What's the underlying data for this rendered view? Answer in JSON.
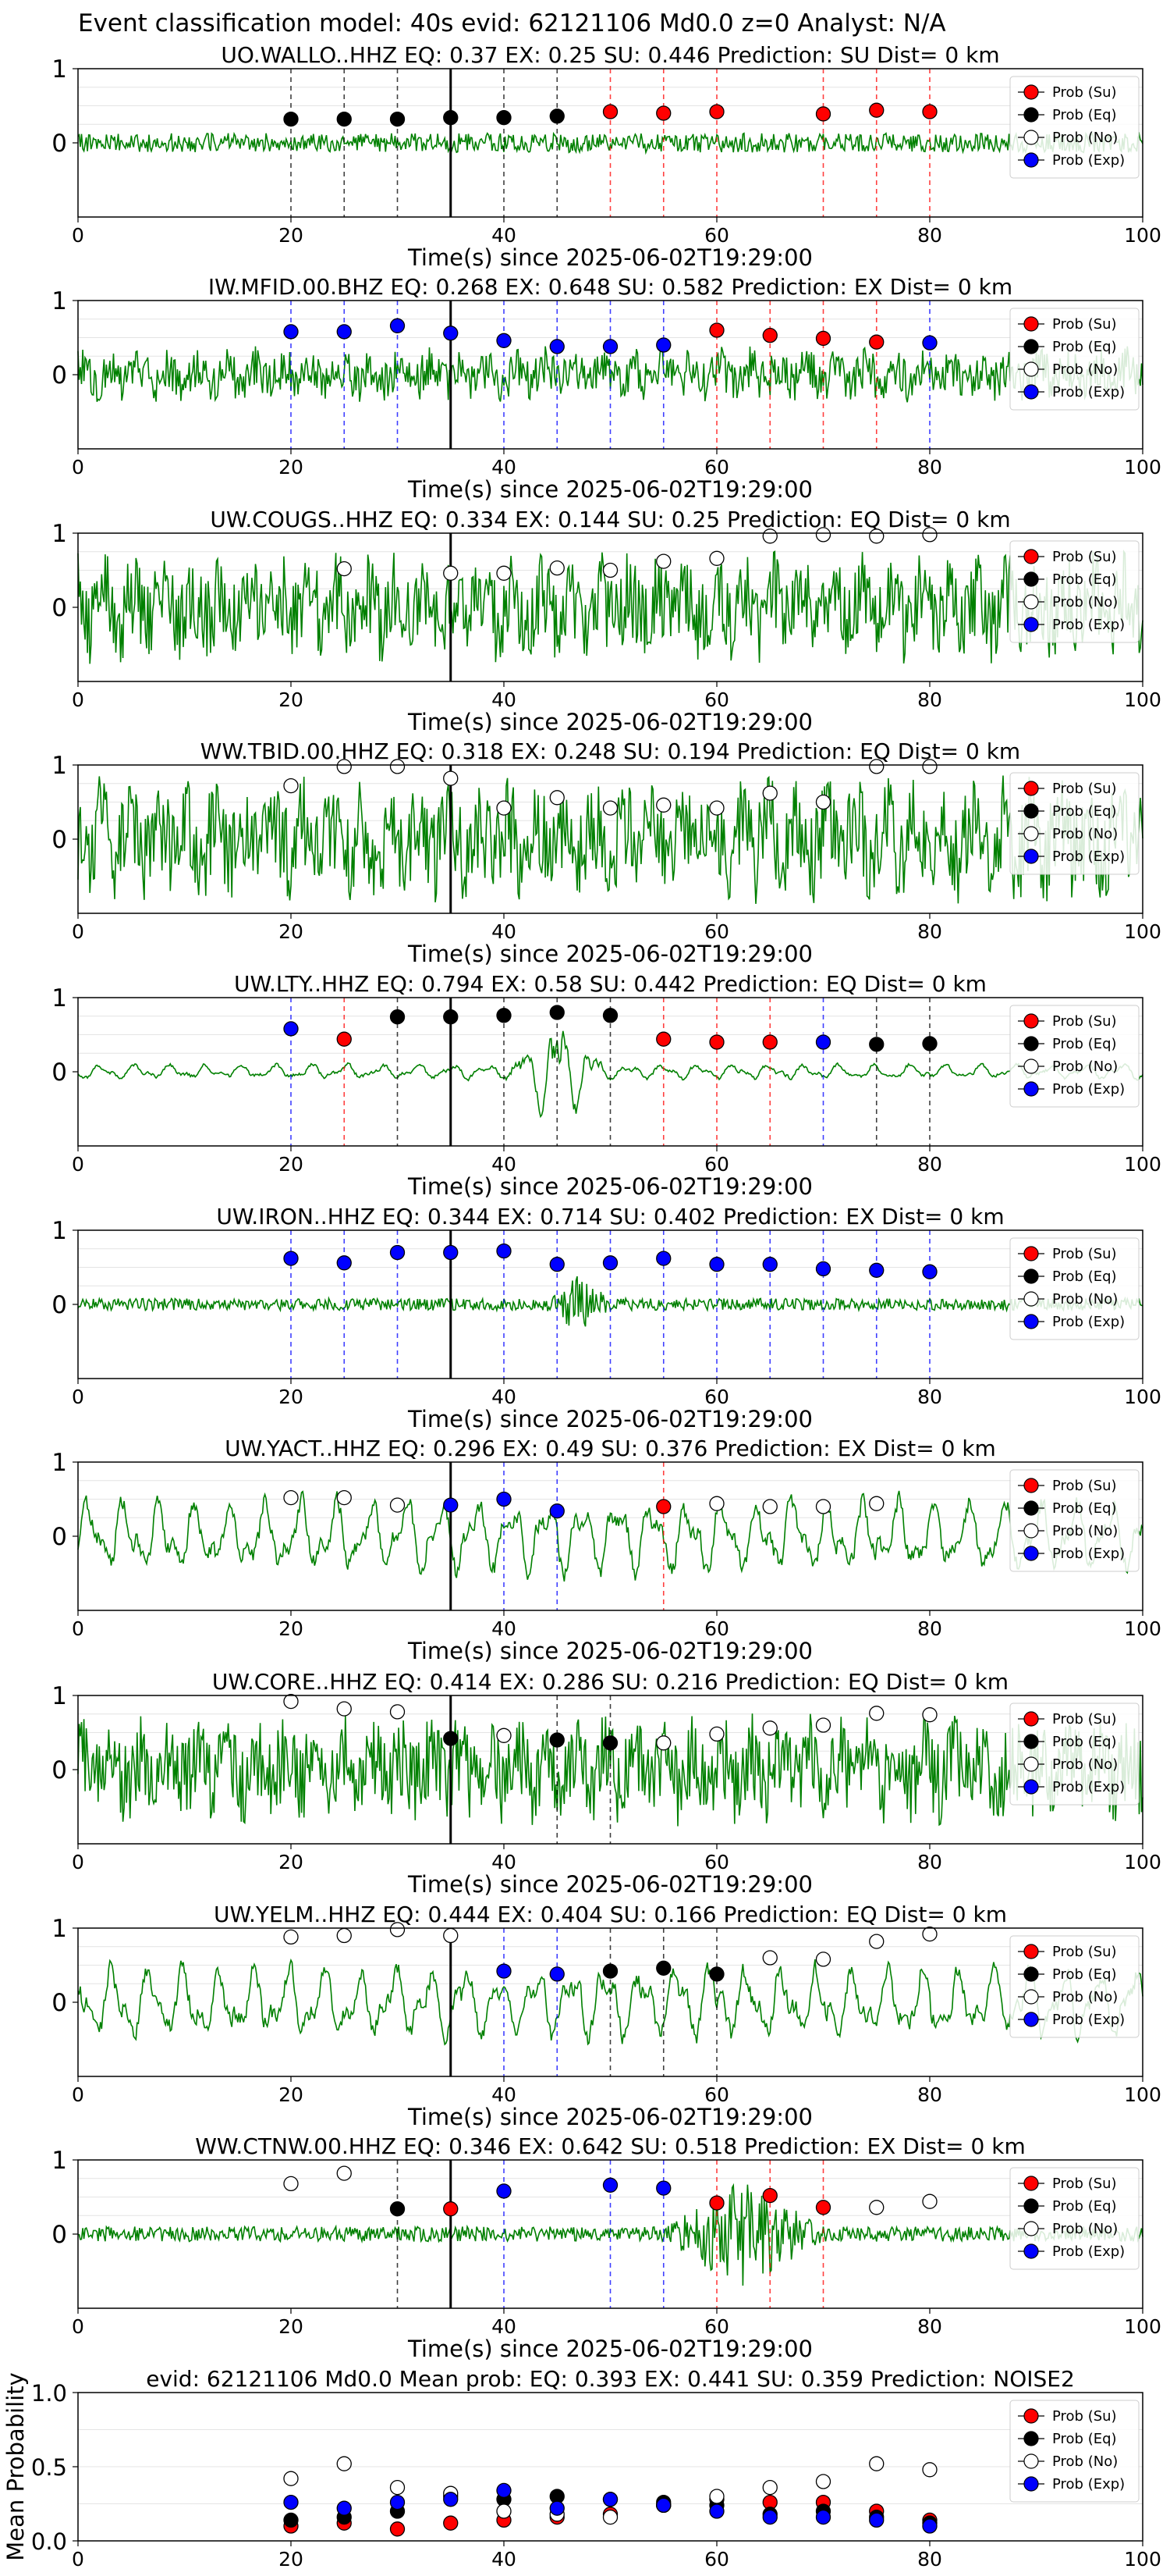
{
  "figure": {
    "suptitle": "Event classification model: 40s evid: 62121106 Md0.0 z=0 Analyst: N/A",
    "x_label": "Time(s) since 2025-06-02T19:29:00",
    "x_ticks": [
      0,
      20,
      40,
      60,
      80,
      100
    ],
    "legend": [
      "Prob (Su)",
      "Prob (Eq)",
      "Prob (No)",
      "Prob (Exp)"
    ],
    "colors": {
      "waveform": "#008000",
      "su": "#ff0000",
      "eq": "#000000",
      "no": "#ffffff",
      "exp": "#0000ff",
      "event_line": "#000000"
    }
  },
  "chart_data": [
    {
      "type": "line",
      "title": "UO.WALLO..HHZ   EQ: 0.37   EX: 0.25   SU: 0.446   Prediction: SU    Dist= 0 km",
      "xlim": [
        0,
        100
      ],
      "ylim": [
        -1,
        1
      ],
      "y_ticks": [
        0,
        1
      ],
      "event_time": 35,
      "waveform_amplitude": 0.13,
      "waveform_character": "noise",
      "points": [
        {
          "x": 20,
          "p": 0.32,
          "cls": "eq"
        },
        {
          "x": 25,
          "p": 0.32,
          "cls": "eq"
        },
        {
          "x": 30,
          "p": 0.32,
          "cls": "eq"
        },
        {
          "x": 35,
          "p": 0.34,
          "cls": "eq"
        },
        {
          "x": 40,
          "p": 0.34,
          "cls": "eq"
        },
        {
          "x": 45,
          "p": 0.36,
          "cls": "eq"
        },
        {
          "x": 50,
          "p": 0.42,
          "cls": "su"
        },
        {
          "x": 55,
          "p": 0.4,
          "cls": "su"
        },
        {
          "x": 60,
          "p": 0.42,
          "cls": "su"
        },
        {
          "x": 70,
          "p": 0.39,
          "cls": "su"
        },
        {
          "x": 75,
          "p": 0.44,
          "cls": "su"
        },
        {
          "x": 80,
          "p": 0.42,
          "cls": "su"
        }
      ]
    },
    {
      "type": "line",
      "title": "IW.MFID.00.BHZ   EQ: 0.268   EX: 0.648   SU: 0.582   Prediction: EX    Dist= 0 km",
      "xlim": [
        0,
        100
      ],
      "ylim": [
        -1,
        1
      ],
      "y_ticks": [
        0,
        1
      ],
      "event_time": 35,
      "waveform_amplitude": 0.35,
      "waveform_character": "noisy",
      "points": [
        {
          "x": 20,
          "p": 0.58,
          "cls": "exp"
        },
        {
          "x": 25,
          "p": 0.58,
          "cls": "exp"
        },
        {
          "x": 30,
          "p": 0.66,
          "cls": "exp"
        },
        {
          "x": 35,
          "p": 0.56,
          "cls": "exp"
        },
        {
          "x": 40,
          "p": 0.46,
          "cls": "exp"
        },
        {
          "x": 45,
          "p": 0.38,
          "cls": "exp"
        },
        {
          "x": 50,
          "p": 0.38,
          "cls": "exp"
        },
        {
          "x": 55,
          "p": 0.4,
          "cls": "exp"
        },
        {
          "x": 60,
          "p": 0.6,
          "cls": "su"
        },
        {
          "x": 65,
          "p": 0.53,
          "cls": "su"
        },
        {
          "x": 70,
          "p": 0.49,
          "cls": "su"
        },
        {
          "x": 75,
          "p": 0.44,
          "cls": "su"
        },
        {
          "x": 80,
          "p": 0.43,
          "cls": "exp"
        }
      ]
    },
    {
      "type": "line",
      "title": "UW.COUGS..HHZ   EQ: 0.334   EX: 0.144   SU: 0.25   Prediction: EQ    Dist= 0 km",
      "xlim": [
        0,
        100
      ],
      "ylim": [
        -1,
        1
      ],
      "y_ticks": [
        0,
        1
      ],
      "event_time": 35,
      "waveform_amplitude": 0.7,
      "waveform_character": "noisy",
      "points": [
        {
          "x": 25,
          "p": 0.52,
          "cls": "no"
        },
        {
          "x": 35,
          "p": 0.46,
          "cls": "no"
        },
        {
          "x": 40,
          "p": 0.46,
          "cls": "no"
        },
        {
          "x": 45,
          "p": 0.53,
          "cls": "no"
        },
        {
          "x": 50,
          "p": 0.5,
          "cls": "no"
        },
        {
          "x": 55,
          "p": 0.62,
          "cls": "no"
        },
        {
          "x": 60,
          "p": 0.66,
          "cls": "no"
        },
        {
          "x": 65,
          "p": 0.96,
          "cls": "no"
        },
        {
          "x": 70,
          "p": 0.98,
          "cls": "no"
        },
        {
          "x": 75,
          "p": 0.96,
          "cls": "no"
        },
        {
          "x": 80,
          "p": 0.98,
          "cls": "no"
        }
      ]
    },
    {
      "type": "line",
      "title": "WW.TBID.00.HHZ   EQ: 0.318   EX: 0.248   SU: 0.194   Prediction: EQ    Dist= 0 km",
      "xlim": [
        0,
        100
      ],
      "ylim": [
        -1,
        1
      ],
      "y_ticks": [
        0,
        1
      ],
      "event_time": 35,
      "waveform_amplitude": 0.8,
      "waveform_character": "noisy",
      "points": [
        {
          "x": 20,
          "p": 0.72,
          "cls": "no"
        },
        {
          "x": 25,
          "p": 0.98,
          "cls": "no"
        },
        {
          "x": 30,
          "p": 0.98,
          "cls": "no"
        },
        {
          "x": 35,
          "p": 0.82,
          "cls": "no"
        },
        {
          "x": 40,
          "p": 0.42,
          "cls": "no"
        },
        {
          "x": 45,
          "p": 0.56,
          "cls": "no"
        },
        {
          "x": 50,
          "p": 0.42,
          "cls": "no"
        },
        {
          "x": 55,
          "p": 0.46,
          "cls": "no"
        },
        {
          "x": 60,
          "p": 0.42,
          "cls": "no"
        },
        {
          "x": 65,
          "p": 0.62,
          "cls": "no"
        },
        {
          "x": 70,
          "p": 0.5,
          "cls": "no"
        },
        {
          "x": 75,
          "p": 0.98,
          "cls": "no"
        },
        {
          "x": 80,
          "p": 0.98,
          "cls": "no"
        }
      ]
    },
    {
      "type": "line",
      "title": "UW.LTY..HHZ   EQ: 0.794   EX: 0.58   SU: 0.442   Prediction: EQ    Dist= 0 km",
      "xlim": [
        0,
        100
      ],
      "ylim": [
        -1,
        1
      ],
      "y_ticks": [
        0,
        1
      ],
      "event_time": 35,
      "waveform_amplitude": 0.12,
      "waveform_character": "smooth",
      "burst": {
        "start": 40,
        "end": 50,
        "amplitude": 0.9
      },
      "points": [
        {
          "x": 20,
          "p": 0.58,
          "cls": "exp"
        },
        {
          "x": 25,
          "p": 0.44,
          "cls": "su"
        },
        {
          "x": 30,
          "p": 0.74,
          "cls": "eq"
        },
        {
          "x": 35,
          "p": 0.74,
          "cls": "eq"
        },
        {
          "x": 40,
          "p": 0.76,
          "cls": "eq"
        },
        {
          "x": 45,
          "p": 0.8,
          "cls": "eq"
        },
        {
          "x": 50,
          "p": 0.76,
          "cls": "eq"
        },
        {
          "x": 55,
          "p": 0.44,
          "cls": "su"
        },
        {
          "x": 60,
          "p": 0.4,
          "cls": "su"
        },
        {
          "x": 65,
          "p": 0.4,
          "cls": "su"
        },
        {
          "x": 70,
          "p": 0.4,
          "cls": "exp"
        },
        {
          "x": 75,
          "p": 0.37,
          "cls": "eq"
        },
        {
          "x": 80,
          "p": 0.38,
          "cls": "eq"
        }
      ]
    },
    {
      "type": "line",
      "title": "UW.IRON..HHZ   EQ: 0.344   EX: 0.714   SU: 0.402   Prediction: EX    Dist= 0 km",
      "xlim": [
        0,
        100
      ],
      "ylim": [
        -1,
        1
      ],
      "y_ticks": [
        0,
        1
      ],
      "event_time": 35,
      "waveform_amplitude": 0.08,
      "waveform_character": "noise",
      "burst": {
        "start": 44,
        "end": 50,
        "amplitude": 0.4
      },
      "points": [
        {
          "x": 20,
          "p": 0.62,
          "cls": "exp"
        },
        {
          "x": 25,
          "p": 0.56,
          "cls": "exp"
        },
        {
          "x": 30,
          "p": 0.7,
          "cls": "exp"
        },
        {
          "x": 35,
          "p": 0.7,
          "cls": "exp"
        },
        {
          "x": 40,
          "p": 0.72,
          "cls": "exp"
        },
        {
          "x": 45,
          "p": 0.54,
          "cls": "exp"
        },
        {
          "x": 50,
          "p": 0.56,
          "cls": "exp"
        },
        {
          "x": 55,
          "p": 0.62,
          "cls": "exp"
        },
        {
          "x": 60,
          "p": 0.54,
          "cls": "exp"
        },
        {
          "x": 65,
          "p": 0.54,
          "cls": "exp"
        },
        {
          "x": 70,
          "p": 0.48,
          "cls": "exp"
        },
        {
          "x": 75,
          "p": 0.46,
          "cls": "exp"
        },
        {
          "x": 80,
          "p": 0.44,
          "cls": "exp"
        }
      ]
    },
    {
      "type": "line",
      "title": "UW.YACT..HHZ   EQ: 0.296   EX: 0.49   SU: 0.376   Prediction: EX    Dist= 0 km",
      "xlim": [
        0,
        100
      ],
      "ylim": [
        -1,
        1
      ],
      "y_ticks": [
        0,
        1
      ],
      "event_time": 35,
      "waveform_amplitude": 0.6,
      "waveform_character": "smooth",
      "points": [
        {
          "x": 20,
          "p": 0.52,
          "cls": "no"
        },
        {
          "x": 25,
          "p": 0.52,
          "cls": "no"
        },
        {
          "x": 30,
          "p": 0.42,
          "cls": "no"
        },
        {
          "x": 35,
          "p": 0.42,
          "cls": "exp"
        },
        {
          "x": 40,
          "p": 0.5,
          "cls": "exp"
        },
        {
          "x": 45,
          "p": 0.34,
          "cls": "exp"
        },
        {
          "x": 55,
          "p": 0.4,
          "cls": "su"
        },
        {
          "x": 60,
          "p": 0.44,
          "cls": "no"
        },
        {
          "x": 65,
          "p": 0.4,
          "cls": "no"
        },
        {
          "x": 70,
          "p": 0.4,
          "cls": "no"
        },
        {
          "x": 75,
          "p": 0.44,
          "cls": "no"
        }
      ]
    },
    {
      "type": "line",
      "title": "UW.CORE..HHZ   EQ: 0.414   EX: 0.286   SU: 0.216   Prediction: EQ    Dist= 0 km",
      "xlim": [
        0,
        100
      ],
      "ylim": [
        -1,
        1
      ],
      "y_ticks": [
        0,
        1
      ],
      "event_time": 35,
      "waveform_amplitude": 0.7,
      "waveform_character": "noisy",
      "points": [
        {
          "x": 20,
          "p": 0.92,
          "cls": "no"
        },
        {
          "x": 25,
          "p": 0.82,
          "cls": "no"
        },
        {
          "x": 30,
          "p": 0.78,
          "cls": "no"
        },
        {
          "x": 35,
          "p": 0.42,
          "cls": "eq"
        },
        {
          "x": 40,
          "p": 0.46,
          "cls": "no"
        },
        {
          "x": 45,
          "p": 0.4,
          "cls": "eq"
        },
        {
          "x": 50,
          "p": 0.36,
          "cls": "eq"
        },
        {
          "x": 55,
          "p": 0.36,
          "cls": "no"
        },
        {
          "x": 60,
          "p": 0.48,
          "cls": "no"
        },
        {
          "x": 65,
          "p": 0.56,
          "cls": "no"
        },
        {
          "x": 70,
          "p": 0.6,
          "cls": "no"
        },
        {
          "x": 75,
          "p": 0.76,
          "cls": "no"
        },
        {
          "x": 80,
          "p": 0.74,
          "cls": "no"
        }
      ]
    },
    {
      "type": "line",
      "title": "UW.YELM..HHZ   EQ: 0.444   EX: 0.404   SU: 0.166   Prediction: EQ    Dist= 0 km",
      "xlim": [
        0,
        100
      ],
      "ylim": [
        -1,
        1
      ],
      "y_ticks": [
        0,
        1
      ],
      "event_time": 35,
      "waveform_amplitude": 0.6,
      "waveform_character": "smooth",
      "points": [
        {
          "x": 20,
          "p": 0.88,
          "cls": "no"
        },
        {
          "x": 25,
          "p": 0.9,
          "cls": "no"
        },
        {
          "x": 30,
          "p": 0.98,
          "cls": "no"
        },
        {
          "x": 35,
          "p": 0.9,
          "cls": "no"
        },
        {
          "x": 40,
          "p": 0.42,
          "cls": "exp"
        },
        {
          "x": 45,
          "p": 0.38,
          "cls": "exp"
        },
        {
          "x": 50,
          "p": 0.42,
          "cls": "eq"
        },
        {
          "x": 55,
          "p": 0.46,
          "cls": "eq"
        },
        {
          "x": 60,
          "p": 0.38,
          "cls": "eq"
        },
        {
          "x": 65,
          "p": 0.6,
          "cls": "no"
        },
        {
          "x": 70,
          "p": 0.58,
          "cls": "no"
        },
        {
          "x": 75,
          "p": 0.82,
          "cls": "no"
        },
        {
          "x": 80,
          "p": 0.92,
          "cls": "no"
        }
      ]
    },
    {
      "type": "line",
      "title": "WW.CTNW.00.HHZ   EQ: 0.346   EX: 0.642   SU: 0.518   Prediction: EX    Dist= 0 km",
      "xlim": [
        0,
        100
      ],
      "ylim": [
        -1,
        1
      ],
      "y_ticks": [
        0,
        1
      ],
      "event_time": 35,
      "waveform_amplitude": 0.1,
      "waveform_character": "noise",
      "burst": {
        "start": 55,
        "end": 70,
        "amplitude": 0.75
      },
      "points": [
        {
          "x": 20,
          "p": 0.68,
          "cls": "no"
        },
        {
          "x": 25,
          "p": 0.82,
          "cls": "no"
        },
        {
          "x": 30,
          "p": 0.34,
          "cls": "eq"
        },
        {
          "x": 35,
          "p": 0.34,
          "cls": "su"
        },
        {
          "x": 40,
          "p": 0.58,
          "cls": "exp"
        },
        {
          "x": 50,
          "p": 0.66,
          "cls": "exp"
        },
        {
          "x": 55,
          "p": 0.62,
          "cls": "exp"
        },
        {
          "x": 60,
          "p": 0.42,
          "cls": "su"
        },
        {
          "x": 65,
          "p": 0.52,
          "cls": "su"
        },
        {
          "x": 70,
          "p": 0.36,
          "cls": "su"
        },
        {
          "x": 75,
          "p": 0.36,
          "cls": "no"
        },
        {
          "x": 80,
          "p": 0.44,
          "cls": "no"
        }
      ]
    },
    {
      "type": "scatter",
      "title": "evid: 62121106  Md0.0   Mean prob:   EQ: 0.393   EX: 0.441   SU: 0.359   Prediction: NOISE2",
      "ylabel": "Mean Probability",
      "xlim": [
        0,
        100
      ],
      "ylim": [
        0,
        1
      ],
      "y_ticks": [
        0.0,
        0.5,
        1.0
      ],
      "y_tick_labels": [
        "0.0",
        "0.5",
        "1.0"
      ],
      "x": [
        20,
        25,
        30,
        35,
        40,
        45,
        50,
        55,
        60,
        65,
        70,
        75,
        80
      ],
      "series": [
        {
          "name": "Prob (Su)",
          "cls": "su",
          "values": [
            0.1,
            0.12,
            0.08,
            0.12,
            0.14,
            0.16,
            0.18,
            0.24,
            0.28,
            0.26,
            0.26,
            0.2,
            0.14
          ]
        },
        {
          "name": "Prob (Eq)",
          "cls": "eq",
          "values": [
            0.14,
            0.16,
            0.2,
            0.3,
            0.28,
            0.3,
            0.28,
            0.26,
            0.24,
            0.18,
            0.2,
            0.16,
            0.12
          ]
        },
        {
          "name": "Prob (No)",
          "cls": "no",
          "values": [
            0.42,
            0.52,
            0.36,
            0.32,
            0.2,
            0.18,
            0.16,
            0.24,
            0.3,
            0.36,
            0.4,
            0.52,
            0.48
          ]
        },
        {
          "name": "Prob (Exp)",
          "cls": "exp",
          "values": [
            0.26,
            0.22,
            0.26,
            0.28,
            0.34,
            0.22,
            0.28,
            0.24,
            0.2,
            0.16,
            0.16,
            0.14,
            0.1
          ]
        }
      ]
    }
  ]
}
